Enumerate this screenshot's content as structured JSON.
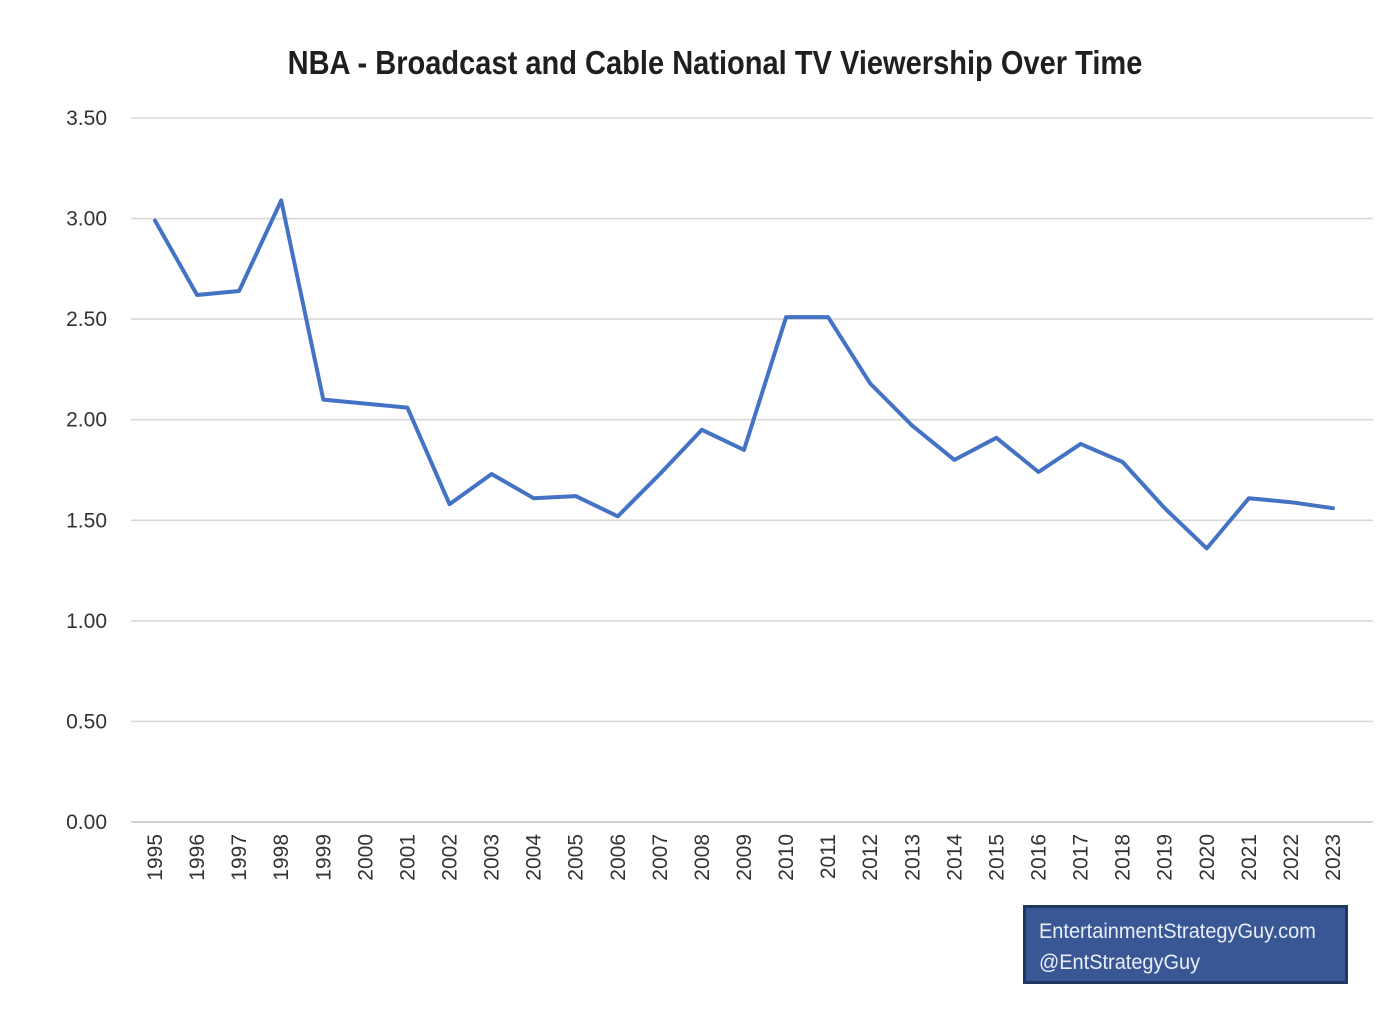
{
  "title": "NBA - Broadcast and Cable National TV Viewership Over Time",
  "watermark": {
    "line1": "EntertainmentStrategyGuy.com",
    "line2": "@EntStrategyGuy",
    "bg_color": "#3A5795",
    "border_color": "#1F3864",
    "text_color": "#E9EFF8"
  },
  "chart_data": {
    "type": "line",
    "title": "NBA - Broadcast and Cable National TV Viewership Over Time",
    "x": [
      1995,
      1996,
      1997,
      1998,
      1999,
      2000,
      2001,
      2002,
      2003,
      2004,
      2005,
      2006,
      2007,
      2008,
      2009,
      2010,
      2011,
      2012,
      2013,
      2014,
      2015,
      2016,
      2017,
      2018,
      2019,
      2020,
      2021,
      2022,
      2023
    ],
    "series": [
      {
        "color": "#4472C4",
        "values": [
          2.99,
          2.62,
          2.64,
          3.09,
          2.1,
          2.08,
          2.06,
          1.58,
          1.73,
          1.61,
          1.62,
          1.52,
          1.73,
          1.95,
          1.85,
          2.51,
          2.51,
          2.18,
          1.97,
          1.8,
          1.91,
          1.74,
          1.88,
          1.79,
          1.56,
          1.36,
          1.61,
          1.59,
          1.56
        ]
      }
    ],
    "xlabel": "",
    "ylabel": "",
    "ylim": [
      0,
      3.5
    ],
    "ytick_step": 0.5,
    "ytick_labels": [
      "0.00",
      "0.50",
      "1.00",
      "1.50",
      "2.00",
      "2.50",
      "3.00",
      "3.50"
    ],
    "xtick_rotation": -90,
    "grid": true,
    "legend": "none",
    "gridline_color": "#D9D9D9",
    "axis_line_color": "#C9C9C9",
    "tick_color": "#333333"
  }
}
